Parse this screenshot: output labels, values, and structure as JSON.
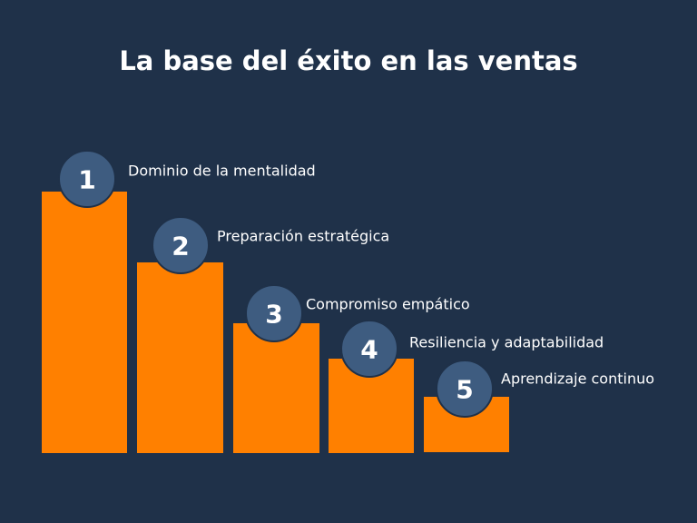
{
  "title": "La base del éxito en las ventas",
  "steps": [
    {
      "number": "1",
      "label": "Dominio de la mentalidad"
    },
    {
      "number": "2",
      "label": "Preparación estratégica"
    },
    {
      "number": "3",
      "label": "Compromiso empático"
    },
    {
      "number": "4",
      "label": "Resiliencia y adaptabilidad"
    },
    {
      "number": "5",
      "label": "Aprendizaje continuo"
    }
  ]
}
